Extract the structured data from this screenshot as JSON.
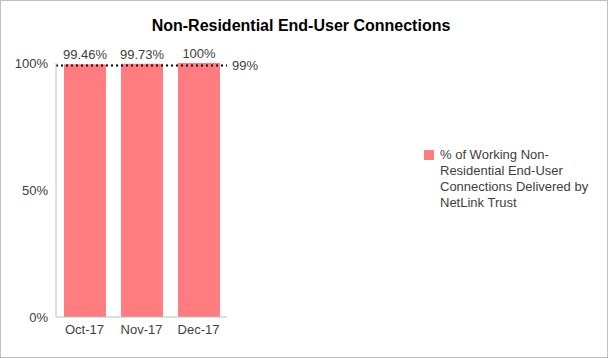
{
  "chart_data": {
    "type": "bar",
    "title": "Non-Residential End-User Connections",
    "categories": [
      "Oct-17",
      "Nov-17",
      "Dec-17"
    ],
    "series": [
      {
        "name": "% of Working Non-Residential End-User Connections Delivered by NetLink Trust",
        "color": "#ff7c80",
        "values": [
          99.46,
          99.73,
          100
        ],
        "value_labels": [
          "99.46%",
          "99.73%",
          "100%"
        ]
      }
    ],
    "ylim": [
      0,
      100
    ],
    "yticks": [
      {
        "value": 0,
        "label": "0%"
      },
      {
        "value": 50,
        "label": "50%"
      },
      {
        "value": 100,
        "label": "100%"
      }
    ],
    "annotations": [
      {
        "y": 99,
        "label": "99%"
      }
    ],
    "data_labels": true,
    "legend": "right",
    "grid": false
  }
}
